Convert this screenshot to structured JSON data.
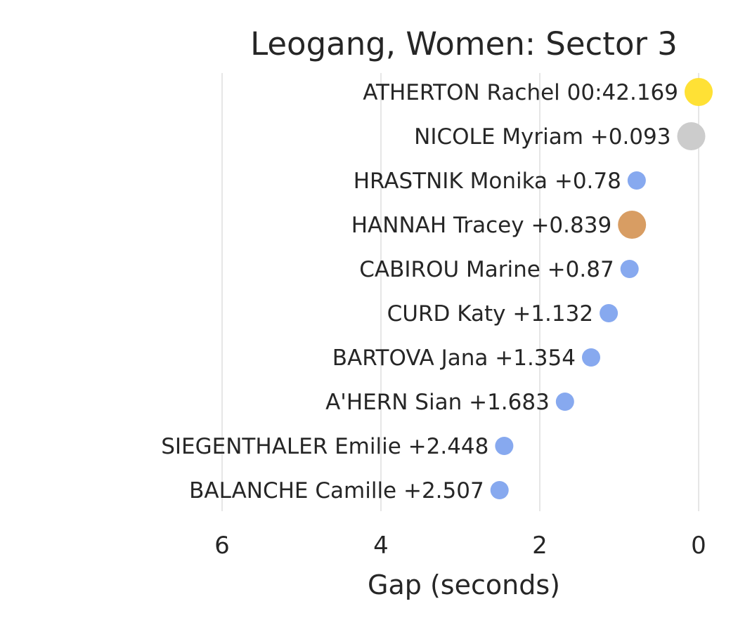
{
  "chart_data": {
    "type": "scatter",
    "title": "Leogang, Women: Sector 3",
    "xlabel": "Gap (seconds)",
    "ylabel": "",
    "xlim": [
      7,
      0
    ],
    "x_axis_inverted": true,
    "grid": "vertical",
    "xticks": [
      "6",
      "4",
      "2",
      "0"
    ],
    "xtick_values": [
      6,
      4,
      2,
      0
    ],
    "points": [
      {
        "label": "ATHERTON Rachel 00:42.169",
        "name": "ATHERTON Rachel",
        "gap": 0.0,
        "color": "#ffe135",
        "size": "large"
      },
      {
        "label": "NICOLE Myriam +0.093",
        "name": "NICOLE Myriam",
        "gap": 0.093,
        "color": "#cccccc",
        "size": "large"
      },
      {
        "label": "HRASTNIK Monika +0.78",
        "name": "HRASTNIK Monika",
        "gap": 0.78,
        "color": "#87a9ef",
        "size": "small"
      },
      {
        "label": "HANNAH Tracey +0.839",
        "name": "HANNAH Tracey",
        "gap": 0.839,
        "color": "#d89d63",
        "size": "large"
      },
      {
        "label": "CABIROU Marine +0.87",
        "name": "CABIROU Marine",
        "gap": 0.87,
        "color": "#87a9ef",
        "size": "small"
      },
      {
        "label": "CURD Katy +1.132",
        "name": "CURD Katy",
        "gap": 1.132,
        "color": "#87a9ef",
        "size": "small"
      },
      {
        "label": "BARTOVA Jana +1.354",
        "name": "BARTOVA Jana",
        "gap": 1.354,
        "color": "#87a9ef",
        "size": "small"
      },
      {
        "label": "A'HERN Sian +1.683",
        "name": "A'HERN Sian",
        "gap": 1.683,
        "color": "#87a9ef",
        "size": "small"
      },
      {
        "label": "SIEGENTHALER Emilie +2.448",
        "name": "SIEGENTHALER Emilie",
        "gap": 2.448,
        "color": "#87a9ef",
        "size": "small"
      },
      {
        "label": "BALANCHE Camille +2.507",
        "name": "BALANCHE Camille",
        "gap": 2.507,
        "color": "#87a9ef",
        "size": "small"
      }
    ]
  }
}
